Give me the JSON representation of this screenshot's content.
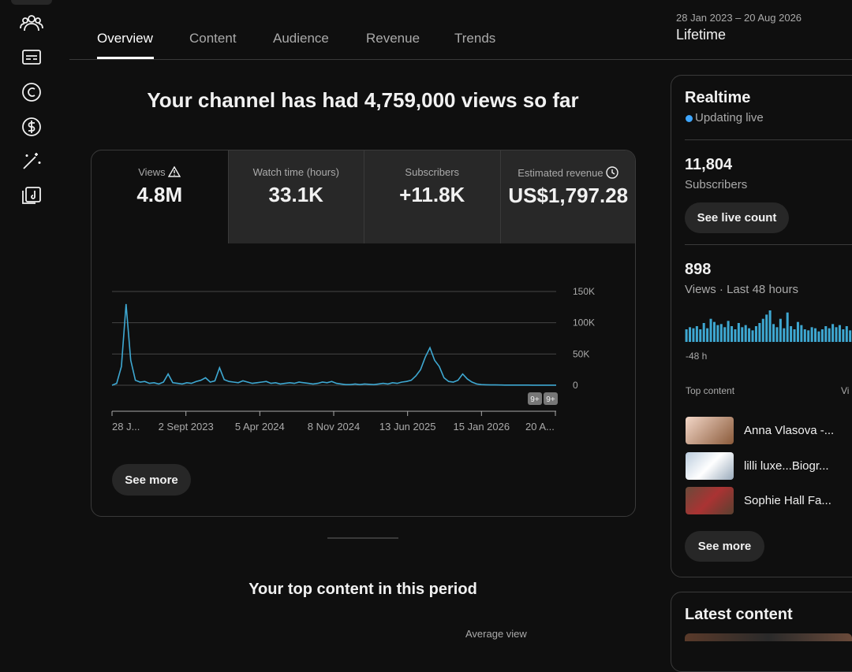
{
  "tabs": [
    "Overview",
    "Content",
    "Audience",
    "Revenue",
    "Trends"
  ],
  "date_range": {
    "range": "28 Jan 2023 – 20 Aug 2026",
    "period": "Lifetime"
  },
  "headline": "Your channel has had 4,759,000 views so far",
  "metrics": [
    {
      "label": "Views",
      "value": "4.8M"
    },
    {
      "label": "Watch time (hours)",
      "value": "33.1K"
    },
    {
      "label": "Subscribers",
      "value": "+11.8K"
    },
    {
      "label": "Estimated revenue",
      "value": "US$1,797.28"
    }
  ],
  "chart": {
    "type": "line",
    "color": "#3ea8d2",
    "values": [
      0,
      3000,
      30000,
      130000,
      40000,
      8000,
      5000,
      6000,
      3000,
      4000,
      2000,
      5000,
      18000,
      4000,
      3000,
      2000,
      4000,
      3000,
      6000,
      8000,
      12000,
      5000,
      7000,
      28000,
      9000,
      6000,
      5000,
      4000,
      7000,
      5000,
      3000,
      4000,
      5000,
      6000,
      3000,
      4000,
      2000,
      3000,
      4000,
      3000,
      5000,
      4000,
      3000,
      2000,
      3000,
      5000,
      4000,
      6000,
      3000,
      2000,
      1000,
      1000,
      2000,
      1000,
      2000,
      1500,
      1000,
      2000,
      3000,
      2000,
      4000,
      3000,
      5000,
      6000,
      8000,
      15000,
      25000,
      45000,
      60000,
      40000,
      30000,
      12000,
      6000,
      5000,
      8000,
      18000,
      10000,
      5000,
      2000,
      1000,
      800,
      500,
      500,
      400,
      300,
      300,
      200,
      200,
      200,
      200,
      100,
      100,
      100,
      100,
      100,
      100
    ],
    "ylim": [
      0,
      150000
    ],
    "yticks": [
      0,
      {
        "value": 50000,
        "label": "50K"
      },
      {
        "value": 100000,
        "label": "100K"
      },
      {
        "value": 150000,
        "label": "150K"
      }
    ],
    "x_tick_labels": [
      "28 J...",
      "2 Sept 2023",
      "5 Apr 2024",
      "8 Nov 2024",
      "13 Jun 2025",
      "15 Jan 2026",
      "20 A..."
    ],
    "badges": [
      "9+",
      "9+"
    ]
  },
  "see_more": "See more",
  "top_content_heading": "Your top content in this period",
  "top_content_column": "Average view",
  "realtime": {
    "title": "Realtime",
    "status": "Updating live",
    "subscribers": "11,804",
    "subscribers_label": "Subscribers",
    "live_count_button": "See live count",
    "views": "898",
    "views_label": "Views · Last 48 hours",
    "bars": [
      12,
      14,
      13,
      15,
      12,
      18,
      13,
      22,
      19,
      16,
      17,
      14,
      20,
      15,
      12,
      18,
      14,
      16,
      13,
      11,
      15,
      18,
      22,
      26,
      30,
      17,
      14,
      22,
      13,
      28,
      15,
      12,
      19,
      16,
      12,
      11,
      14,
      13,
      10,
      12,
      15,
      13,
      17,
      14,
      16,
      12,
      15,
      11
    ],
    "bars_start_label": "-48 h",
    "top_content_label": "Top content",
    "top_content_views_label": "Vi",
    "items": [
      "Anna Vlasova -...",
      "lilli luxe...Biogr...",
      "Sophie Hall Fa..."
    ],
    "see_more": "See more"
  },
  "latest_content": "Latest content"
}
